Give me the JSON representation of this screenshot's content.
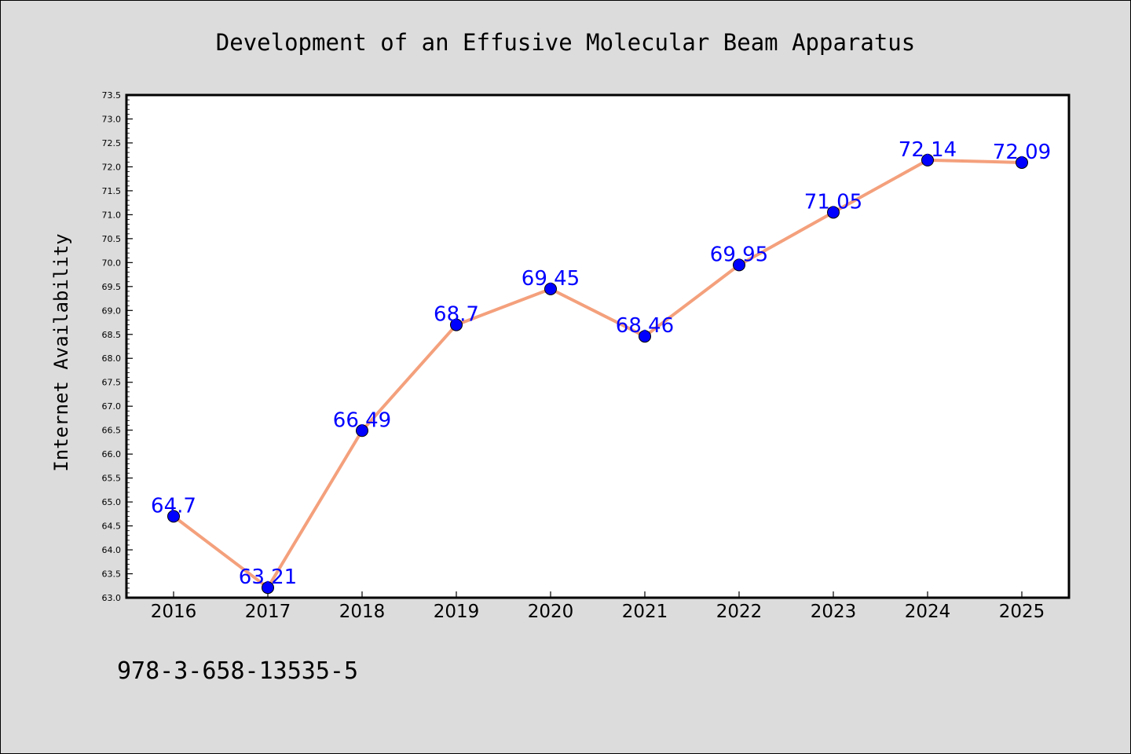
{
  "chart_data": {
    "type": "line",
    "title": "Development of an Effusive Molecular Beam Apparatus",
    "xlabel": "",
    "ylabel": "Internet Availability",
    "categories": [
      "2016",
      "2017",
      "2018",
      "2019",
      "2020",
      "2021",
      "2022",
      "2023",
      "2024",
      "2025"
    ],
    "series": [
      {
        "values": [
          64.7,
          63.21,
          66.49,
          68.7,
          69.45,
          68.46,
          69.95,
          71.05,
          72.14,
          72.09
        ],
        "data_labels": [
          "64.7",
          "63.21",
          "66.49",
          "68.7",
          "69.45",
          "68.46",
          "69.95",
          "71.05",
          "72.14",
          "72.09"
        ],
        "line_color": "#f4a07c",
        "marker_color": "#0000ff"
      }
    ],
    "ylim": [
      63.0,
      73.5
    ],
    "yticks": [
      "63.0",
      "63.5",
      "64.0",
      "64.5",
      "65.0",
      "65.5",
      "66.0",
      "66.5",
      "67.0",
      "67.5",
      "68.0",
      "68.5",
      "69.0",
      "69.5",
      "70.0",
      "70.5",
      "71.0",
      "71.5",
      "72.0",
      "72.5",
      "73.0",
      "73.5"
    ],
    "grid": false,
    "legend": "none"
  },
  "footer_text": "978-3-658-13535-5",
  "colors": {
    "background": "#dcdcdc",
    "plot_area": "#ffffff",
    "line": "#f4a07c",
    "marker": "#0000ff",
    "data_label": "#0000ff"
  }
}
